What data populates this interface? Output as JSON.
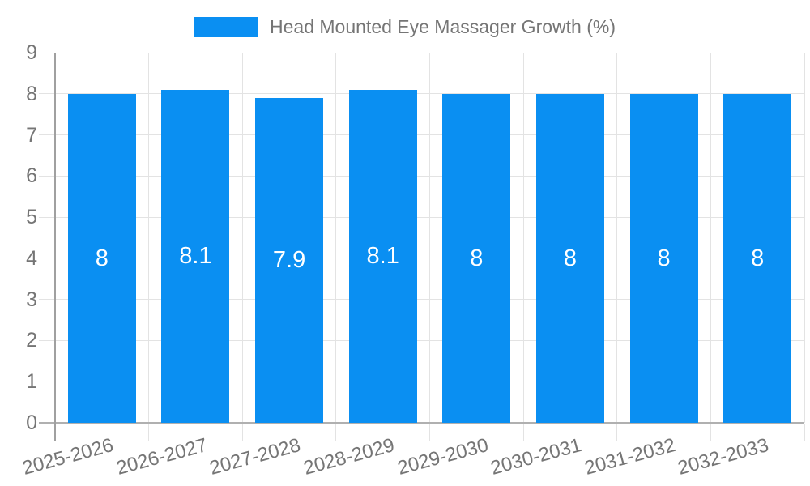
{
  "legend": {
    "label": "Head Mounted Eye Massager Growth (%)"
  },
  "chart_data": {
    "type": "bar",
    "title": "",
    "legend_label": "Head Mounted Eye Massager Growth (%)",
    "legend_position": "top",
    "categories": [
      "2025-2026",
      "2026-2027",
      "2027-2028",
      "2028-2029",
      "2029-2030",
      "2030-2031",
      "2031-2032",
      "2032-2033"
    ],
    "values": [
      8,
      8.1,
      7.9,
      8.1,
      8,
      8,
      8,
      8
    ],
    "value_labels": [
      "8",
      "8.1",
      "7.9",
      "8.1",
      "8",
      "8",
      "8",
      "8"
    ],
    "xlabel": "",
    "ylabel": "",
    "ylim": [
      0,
      9
    ],
    "y_ticks": [
      "0",
      "1",
      "2",
      "3",
      "4",
      "5",
      "6",
      "7",
      "8",
      "9"
    ],
    "grid": true,
    "colors": {
      "bar": "#0a8ff2",
      "value_label": "#ffffff",
      "axis_text": "#757575",
      "grid_line": "#e3e3e3",
      "y_axis_line": "#a0a0a0",
      "x_axis_line": "#b0b0b0",
      "background": "#ffffff"
    }
  }
}
